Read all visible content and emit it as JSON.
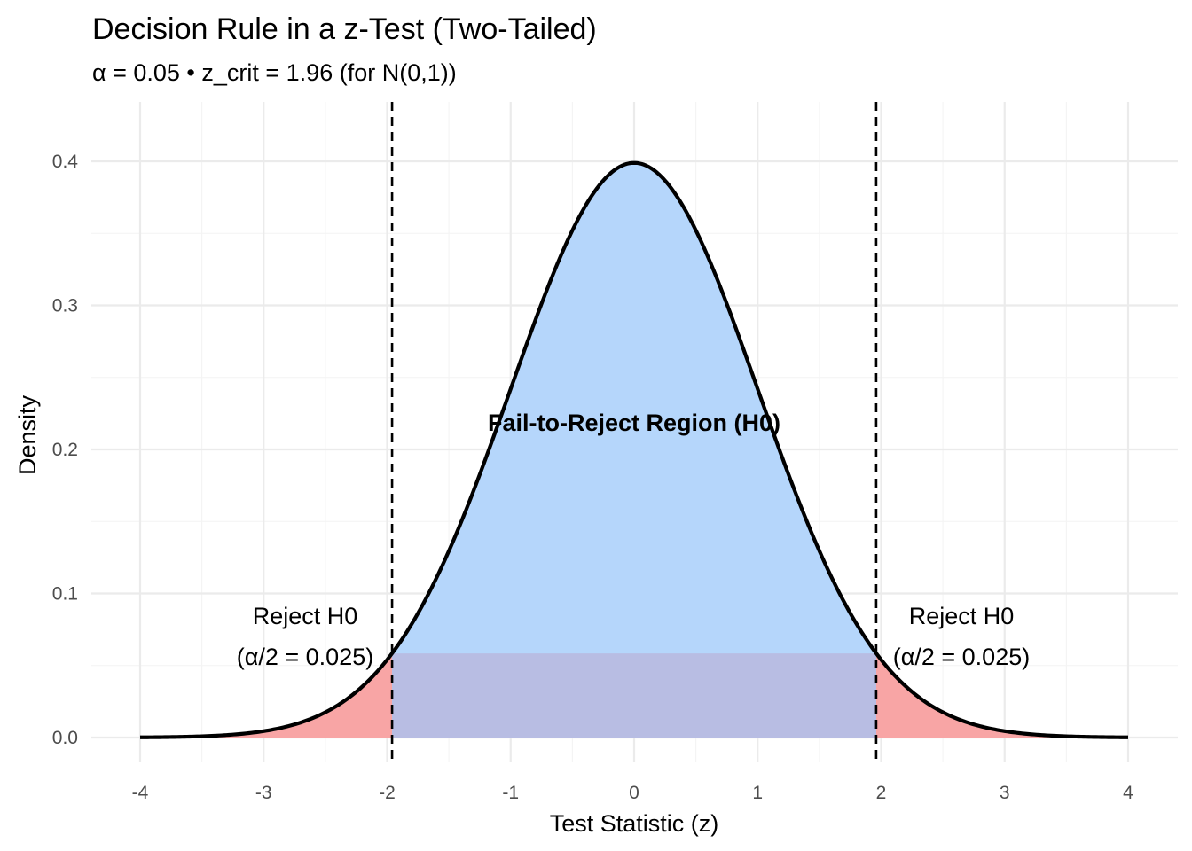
{
  "chart_data": {
    "type": "area",
    "title": "Decision Rule in a z-Test (Two-Tailed)",
    "subtitle": "α = 0.05 • z_crit = 1.96 (for N(0,1))",
    "xlabel": "Test Statistic (z)",
    "ylabel": "Density",
    "xlim": [
      -4,
      4
    ],
    "ylim": [
      0,
      0.4
    ],
    "x_ticks": [
      -4,
      -3,
      -2,
      -1,
      0,
      1,
      2,
      3,
      4
    ],
    "x_tick_labels": [
      "-4",
      "-3",
      "-2",
      "-1",
      "0",
      "1",
      "2",
      "3",
      "4"
    ],
    "y_ticks": [
      0.0,
      0.1,
      0.2,
      0.3,
      0.4
    ],
    "y_tick_labels": [
      "0.0",
      "0.1",
      "0.2",
      "0.3",
      "0.4"
    ],
    "grid": true,
    "alpha": 0.05,
    "z_crit": 1.96,
    "curve": {
      "distribution": "standard normal N(0,1)",
      "x": [
        -4,
        -3.5,
        -3,
        -2.5,
        -2,
        -1.96,
        -1.5,
        -1,
        -0.5,
        0,
        0.5,
        1,
        1.5,
        1.96,
        2,
        2.5,
        3,
        3.5,
        4
      ],
      "y": [
        0.0001,
        0.0009,
        0.0044,
        0.0175,
        0.054,
        0.0584,
        0.1295,
        0.242,
        0.3521,
        0.3989,
        0.3521,
        0.242,
        0.1295,
        0.0584,
        0.054,
        0.0175,
        0.0044,
        0.0009,
        0.0001
      ],
      "color": "#000000"
    },
    "regions": [
      {
        "name": "reject-left",
        "x_range": [
          -4,
          -1.96
        ],
        "color": "#f8a5a5"
      },
      {
        "name": "fail-to-reject",
        "x_range": [
          -1.96,
          1.96
        ],
        "color": "#b5d6fb"
      },
      {
        "name": "reject-right",
        "x_range": [
          1.96,
          4
        ],
        "color": "#f8a5a5"
      }
    ],
    "band": {
      "x_range": [
        -1.96,
        1.96
      ],
      "y_range": [
        0,
        0.0584
      ],
      "color": "#b8bde3"
    },
    "critical_lines": [
      -1.96,
      1.96
    ],
    "annotations": {
      "center": "Fail-to-Reject Region (H0)",
      "left_line1": "Reject H0",
      "left_line2": "(α/2 = 0.025)",
      "right_line1": "Reject H0",
      "right_line2": "(α/2 = 0.025)"
    }
  }
}
